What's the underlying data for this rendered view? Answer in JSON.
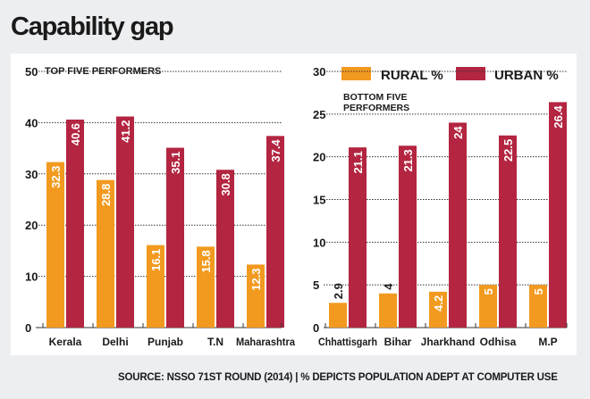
{
  "title": "Capability gap",
  "source": "SOURCE: NSSO 71ST ROUND (2014) | % DEPICTS POPULATION ADEPT AT COMPUTER USE",
  "colors": {
    "rural": "#f29a1f",
    "urban": "#b32540"
  },
  "legend": {
    "rural": "RURAL %",
    "urban": "URBAN %",
    "placement": "top-right"
  },
  "chart_data": [
    {
      "type": "bar",
      "title": "TOP FIVE PERFORMERS",
      "categories": [
        "Kerala",
        "Delhi",
        "Punjab",
        "T.N",
        "Maharashtra"
      ],
      "series": [
        {
          "name": "RURAL %",
          "values": [
            32.3,
            28.8,
            16.1,
            15.8,
            12.3
          ],
          "labels": [
            "32.3",
            "28.8",
            "16.1",
            "15.8",
            "12.3"
          ]
        },
        {
          "name": "URBAN %",
          "values": [
            40.6,
            41.2,
            35.1,
            30.8,
            37.4
          ],
          "labels": [
            "40.6",
            "41.2",
            "35.1",
            "30.8",
            "37.4"
          ]
        }
      ],
      "ylim": [
        0,
        50
      ],
      "yticks": [
        "0",
        "10",
        "20",
        "30",
        "40",
        "50"
      ],
      "grid": true
    },
    {
      "type": "bar",
      "title": "BOTTOM FIVE PERFORMERS",
      "categories": [
        "Chhattisgarh",
        "Bihar",
        "Jharkhand",
        "Odhisa",
        "M.P"
      ],
      "series": [
        {
          "name": "RURAL %",
          "values": [
            2.9,
            4,
            4.2,
            5,
            5
          ],
          "labels": [
            "2.9",
            "4",
            "4.2",
            "5",
            "5"
          ]
        },
        {
          "name": "URBAN %",
          "values": [
            21.1,
            21.3,
            24,
            22.5,
            26.4
          ],
          "labels": [
            "21.1",
            "21.3",
            "24",
            "22.5",
            "26.4"
          ]
        }
      ],
      "ylim": [
        0,
        30
      ],
      "yticks": [
        "0",
        "5",
        "10",
        "15",
        "20",
        "25",
        "30"
      ],
      "grid": true
    }
  ]
}
